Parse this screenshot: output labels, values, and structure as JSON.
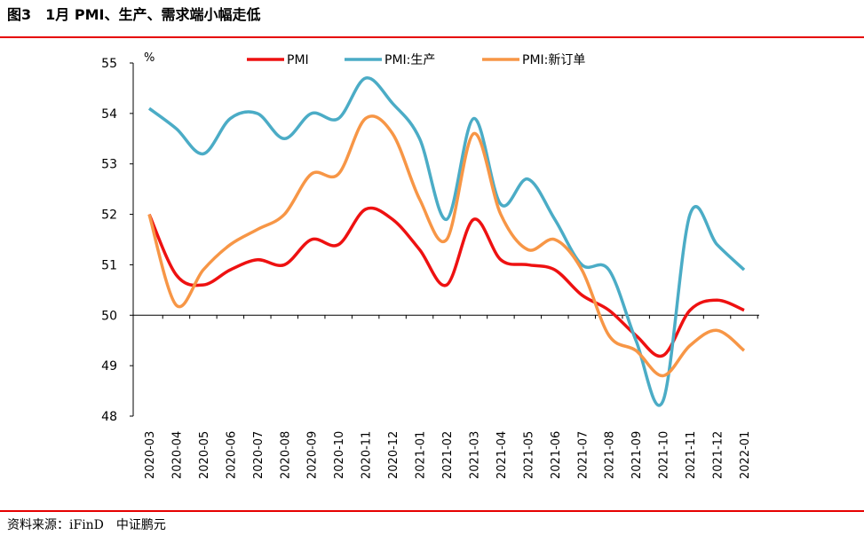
{
  "header": {
    "title": "图3　1月 PMI、生产、需求端小幅走低"
  },
  "chart_data": {
    "type": "line",
    "unit": "%",
    "categories": [
      "2020-03",
      "2020-04",
      "2020-05",
      "2020-06",
      "2020-07",
      "2020-08",
      "2020-09",
      "2020-10",
      "2020-11",
      "2020-12",
      "2021-01",
      "2021-02",
      "2021-03",
      "2021-04",
      "2021-05",
      "2021-06",
      "2021-07",
      "2021-08",
      "2021-09",
      "2021-10",
      "2021-11",
      "2021-12",
      "2022-01"
    ],
    "series": [
      {
        "name": "PMI",
        "color": "#ee1111",
        "values": [
          52.0,
          50.8,
          50.6,
          50.9,
          51.1,
          51.0,
          51.5,
          51.4,
          52.1,
          51.9,
          51.3,
          50.6,
          51.9,
          51.1,
          51.0,
          50.9,
          50.4,
          50.1,
          49.6,
          49.2,
          50.1,
          50.3,
          50.1
        ]
      },
      {
        "name": "PMI:生产",
        "color": "#4bacc6",
        "values": [
          54.1,
          53.7,
          53.2,
          53.9,
          54.0,
          53.5,
          54.0,
          53.9,
          54.7,
          54.2,
          53.5,
          51.9,
          53.9,
          52.2,
          52.7,
          51.9,
          51.0,
          50.9,
          49.5,
          48.3,
          52.0,
          51.4,
          50.9
        ]
      },
      {
        "name": "PMI:新订单",
        "color": "#f79646",
        "values": [
          52.0,
          50.2,
          50.9,
          51.4,
          51.7,
          52.0,
          52.8,
          52.8,
          53.9,
          53.6,
          52.3,
          51.5,
          53.6,
          52.0,
          51.3,
          51.5,
          50.9,
          49.6,
          49.3,
          48.8,
          49.4,
          49.7,
          49.3
        ]
      }
    ],
    "ylim": [
      48,
      55
    ],
    "yticks": [
      48,
      49,
      50,
      51,
      52,
      53,
      54,
      55
    ],
    "grid": false
  },
  "footer": {
    "source": "资料来源：iFinD　中证鹏元"
  }
}
